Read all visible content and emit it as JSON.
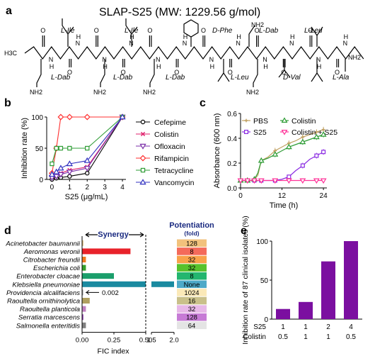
{
  "panels": {
    "a": "a",
    "b": "b",
    "c": "c",
    "d": "d",
    "e": "e"
  },
  "panel_a": {
    "title": "SLAP-S25 (MW: 1229.56 g/mol)",
    "residue_labels_top": [
      "L-Ile",
      "L-Ile",
      "D-Phe",
      "L-Dab",
      "L-Leu"
    ],
    "residue_labels_bottom": [
      "L-Dab",
      "L-Dab",
      "L-Dab",
      "L-Leu",
      "D-Val",
      "L-Ala"
    ],
    "atoms": {
      "ch3": "H3C",
      "nh2": "NH2",
      "n": "N",
      "h": "H",
      "o": "O"
    }
  },
  "chart_data": [
    {
      "panel": "b",
      "type": "line",
      "xlabel": "S25 (μg/mL)",
      "ylabel": "Inhibition rate (%)",
      "xlim": [
        -0.3,
        4.2
      ],
      "ylim": [
        0,
        100
      ],
      "xticks": [
        0,
        1,
        2,
        3,
        4
      ],
      "yticks": [
        0,
        50,
        100
      ],
      "x": [
        0,
        0.25,
        0.5,
        1,
        2,
        4
      ],
      "series": [
        {
          "name": "Cefepime",
          "color": "#000000",
          "marker": "circle",
          "values": [
            0,
            2,
            3,
            5,
            10,
            100
          ]
        },
        {
          "name": "Colistin",
          "color": "#e0206c",
          "marker": "x",
          "values": [
            5,
            8,
            10,
            15,
            20,
            100
          ]
        },
        {
          "name": "Ofloxacin",
          "color": "#7b2fa8",
          "marker": "triangle-down",
          "values": [
            3,
            5,
            8,
            12,
            18,
            100
          ]
        },
        {
          "name": "Rifampicin",
          "color": "#ff3030",
          "marker": "diamond",
          "values": [
            10,
            50,
            100,
            100,
            100,
            100
          ]
        },
        {
          "name": "Tetracycline",
          "color": "#2e9c35",
          "marker": "square",
          "values": [
            25,
            50,
            50,
            50,
            50,
            100
          ]
        },
        {
          "name": "Vancomycin",
          "color": "#3030c0",
          "marker": "triangle",
          "values": [
            8,
            12,
            18,
            25,
            30,
            100
          ]
        }
      ]
    },
    {
      "panel": "c",
      "type": "line",
      "xlabel": "Time (h)",
      "ylabel": "Absorbance (600 nm)",
      "xlim": [
        0,
        25
      ],
      "ylim": [
        0,
        0.6
      ],
      "xticks": [
        0,
        12,
        24
      ],
      "yticks": [
        0.0,
        0.2,
        0.4,
        0.6
      ],
      "x": [
        0,
        1,
        2,
        3,
        4,
        5,
        6,
        8,
        10,
        12,
        14,
        16,
        18,
        20,
        22,
        24
      ],
      "series": [
        {
          "name": "PBS",
          "color": "#c0a060",
          "marker": "plus",
          "values": [
            0.06,
            0.06,
            0.06,
            0.06,
            0.07,
            0.1,
            0.22,
            0.25,
            0.3,
            0.33,
            0.36,
            0.38,
            0.41,
            0.43,
            0.45,
            0.47
          ]
        },
        {
          "name": "S25",
          "color": "#8a2be2",
          "marker": "square",
          "values": [
            0.06,
            0.06,
            0.06,
            0.06,
            0.06,
            0.06,
            0.06,
            0.06,
            0.06,
            0.07,
            0.09,
            0.14,
            0.18,
            0.23,
            0.26,
            0.29
          ]
        },
        {
          "name": "Colistin",
          "color": "#2e9c35",
          "marker": "triangle",
          "values": [
            0.06,
            0.06,
            0.06,
            0.06,
            0.07,
            0.12,
            0.22,
            0.24,
            0.27,
            0.3,
            0.33,
            0.35,
            0.37,
            0.39,
            0.41,
            0.43
          ]
        },
        {
          "name": "Colistin + S25",
          "color": "#ff3399",
          "marker": "triangle-down",
          "values": [
            0.06,
            0.06,
            0.06,
            0.06,
            0.06,
            0.06,
            0.06,
            0.06,
            0.06,
            0.06,
            0.06,
            0.06,
            0.06,
            0.06,
            0.06,
            0.06
          ]
        }
      ]
    },
    {
      "panel": "d",
      "type": "bar",
      "orientation": "horizontal",
      "xlabel": "FIC index",
      "xlim": [
        0,
        2.0
      ],
      "xticks": [
        "0.00",
        "0.25",
        "0.50",
        "1.5",
        "2.0"
      ],
      "synergy_label": "Synergy",
      "annotation": "0.002",
      "potentiation_title": "Potentiation",
      "potentiation_subtitle": "(fold)",
      "categories": [
        "Acinetobacter baumannii",
        "Aeromonas veronii",
        "Citrobacter freundii",
        "Escherichia coli",
        "Enterobacter cloacae",
        "Klebsiella pneumoniae",
        "Providencia alcalifaciens",
        "Raoultella ornithinolytica",
        "Raoultella planticola",
        "Serratia marcescens",
        "Salmonella enteritidis"
      ],
      "values": [
        0.01,
        0.38,
        0.03,
        0.03,
        0.25,
        2.0,
        0.002,
        0.06,
        0.03,
        0.01,
        0.03
      ],
      "bar_colors": [
        "#e0c080",
        "#e8222a",
        "#f07a20",
        "#33a02c",
        "#1a9e6b",
        "#1a8aa0",
        "#9a9a9a",
        "#b0a060",
        "#c080c0",
        "#9040b0",
        "#808080"
      ],
      "potentiation": [
        "128",
        "8",
        "32",
        "32",
        "8",
        "None",
        "1024",
        "16",
        "32",
        "128",
        "64"
      ],
      "potentiation_colors": [
        "#f2c27c",
        "#f46a5a",
        "#f9a14a",
        "#58c22c",
        "#23b66f",
        "#4da9c8",
        "#fbe9b8",
        "#c9c08a",
        "#e7b8e8",
        "#c77bd6",
        "#e4e4e4"
      ]
    },
    {
      "panel": "e",
      "type": "bar",
      "ylabel": "Inhibition rate of 87 clinical isolates (%)",
      "ylim": [
        0,
        100
      ],
      "yticks": [
        0,
        50,
        100
      ],
      "row_labels": [
        "S25",
        "Colistin"
      ],
      "categories": [
        [
          "1",
          "0.5"
        ],
        [
          "1",
          "1"
        ],
        [
          "2",
          "1"
        ],
        [
          "4",
          "0.5"
        ]
      ],
      "values": [
        13,
        22,
        74,
        100
      ],
      "color": "#7b0fa0"
    }
  ]
}
